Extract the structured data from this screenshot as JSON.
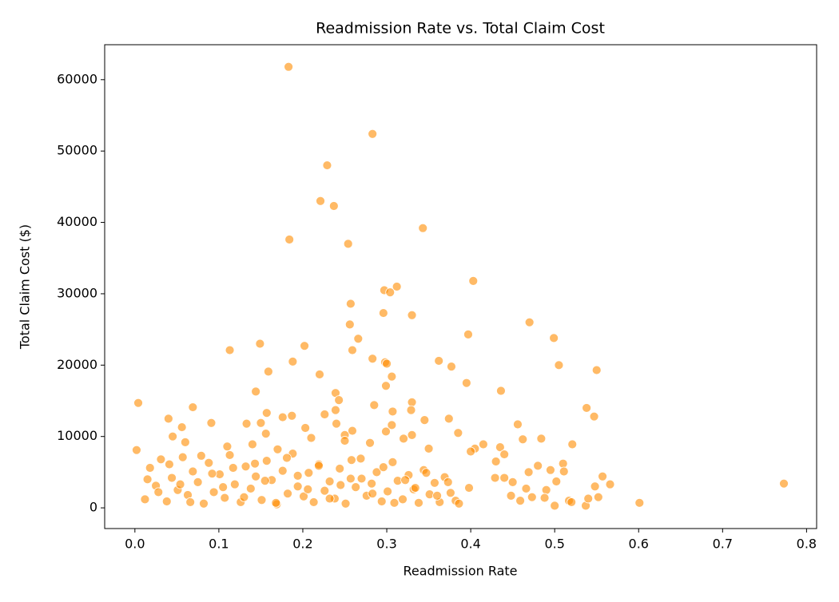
{
  "chart_data": {
    "type": "scatter",
    "title": "Readmission Rate vs. Total Claim Cost",
    "x_label": "Readmission Rate",
    "y_label": "Total Claim Cost ($)",
    "color": "darkorange",
    "alpha": 0.6,
    "grid": false,
    "xlim": [
      -0.036,
      0.812
    ],
    "ylim": [
      -2900,
      64900
    ],
    "xticks": [
      {
        "value": 0,
        "label": "0.0"
      },
      0.1,
      0.2,
      0.3,
      0.4,
      0.5,
      0.6,
      0.7,
      0.8
    ],
    "yticks": [
      0,
      10000,
      20000,
      30000,
      40000,
      50000,
      60000
    ],
    "x": [
      0.183,
      0.283,
      0.229,
      0.221,
      0.237,
      0.184,
      0.254,
      0.343,
      0.403,
      0.297,
      0.312,
      0.304,
      0.257,
      0.296,
      0.33,
      0.47,
      0.256,
      0.397,
      0.499,
      0.266,
      0.149,
      0.202,
      0.113,
      0.259,
      0.283,
      0.362,
      0.188,
      0.298,
      0.3,
      0.505,
      0.377,
      0.55,
      0.159,
      0.22,
      0.306,
      0.395,
      0.299,
      0.436,
      0.144,
      0.239,
      0.243,
      0.004,
      0.33,
      0.285,
      0.069,
      0.538,
      0.157,
      0.239,
      0.307,
      0.329,
      0.226,
      0.547,
      0.187,
      0.176,
      0.04,
      0.345,
      0.374,
      0.133,
      0.15,
      0.091,
      0.24,
      0.306,
      0.456,
      0.056,
      0.203,
      0.385,
      0.045,
      0.156,
      0.259,
      0.299,
      0.33,
      0.25,
      0.462,
      0.484,
      0.521,
      0.415,
      0.435,
      0.405,
      0.4,
      0.002,
      0.773,
      0.601,
      0.566,
      0.557,
      0.548,
      0.537,
      0.517,
      0.54,
      0.51,
      0.495,
      0.49,
      0.469,
      0.466,
      0.48,
      0.45,
      0.5,
      0.52,
      0.552,
      0.43,
      0.44,
      0.429,
      0.44,
      0.448,
      0.459,
      0.473,
      0.488,
      0.502,
      0.511,
      0.012,
      0.018,
      0.025,
      0.031,
      0.038,
      0.044,
      0.051,
      0.057,
      0.063,
      0.069,
      0.075,
      0.082,
      0.088,
      0.094,
      0.101,
      0.107,
      0.113,
      0.119,
      0.126,
      0.132,
      0.138,
      0.144,
      0.151,
      0.157,
      0.163,
      0.169,
      0.176,
      0.182,
      0.188,
      0.194,
      0.201,
      0.207,
      0.213,
      0.219,
      0.226,
      0.232,
      0.238,
      0.244,
      0.251,
      0.257,
      0.263,
      0.269,
      0.276,
      0.282,
      0.288,
      0.294,
      0.301,
      0.307,
      0.313,
      0.319,
      0.326,
      0.332,
      0.338,
      0.344,
      0.351,
      0.357,
      0.363,
      0.369,
      0.376,
      0.382,
      0.015,
      0.028,
      0.041,
      0.054,
      0.066,
      0.079,
      0.092,
      0.105,
      0.117,
      0.13,
      0.143,
      0.155,
      0.168,
      0.181,
      0.194,
      0.206,
      0.219,
      0.232,
      0.245,
      0.258,
      0.27,
      0.283,
      0.296,
      0.309,
      0.322,
      0.334,
      0.347,
      0.36,
      0.373,
      0.386,
      0.398,
      0.06,
      0.11,
      0.14,
      0.17,
      0.21,
      0.25,
      0.28,
      0.32,
      0.35
    ],
    "values": [
      61800,
      52400,
      48000,
      43000,
      42300,
      37600,
      37000,
      39200,
      31800,
      30500,
      31000,
      30200,
      28600,
      27300,
      27000,
      26000,
      25700,
      24300,
      23800,
      23700,
      23000,
      22700,
      22100,
      22100,
      20900,
      20600,
      20500,
      20400,
      20200,
      20000,
      19800,
      19300,
      19100,
      18700,
      18400,
      17500,
      17100,
      16400,
      16300,
      16100,
      15100,
      14700,
      14800,
      14400,
      14100,
      14000,
      13300,
      13700,
      13500,
      13700,
      13100,
      12800,
      12900,
      12700,
      12500,
      12300,
      12500,
      11800,
      11900,
      11900,
      11800,
      11600,
      11700,
      11300,
      11200,
      10500,
      10000,
      10400,
      10800,
      10700,
      10200,
      10200,
      9600,
      9700,
      8900,
      8900,
      8500,
      8300,
      7900,
      8100,
      3400,
      700,
      3300,
      4400,
      3000,
      300,
      1000,
      1300,
      6200,
      5300,
      2500,
      5000,
      2700,
      5900,
      3600,
      300,
      800,
      1500,
      6500,
      7500,
      4200,
      4200,
      1700,
      1000,
      1500,
      1400,
      3700,
      5100,
      1200,
      5600,
      3100,
      6800,
      900,
      4200,
      2500,
      7100,
      1800,
      5100,
      3600,
      600,
      6300,
      2200,
      4700,
      1400,
      7400,
      3300,
      800,
      5800,
      2700,
      4400,
      1100,
      6600,
      3900,
      500,
      5200,
      2000,
      7600,
      3000,
      1600,
      4900,
      800,
      6100,
      2400,
      3700,
      1300,
      5500,
      600,
      4100,
      2900,
      6900,
      1700,
      3400,
      5000,
      900,
      2300,
      6400,
      3800,
      1200,
      4600,
      2600,
      700,
      5300,
      1900,
      3500,
      800,
      4300,
      2100,
      1000,
      4000,
      2200,
      6100,
      3300,
      800,
      7300,
      4800,
      2900,
      5600,
      1500,
      6200,
      3800,
      700,
      7000,
      4500,
      2600,
      5900,
      1300,
      3200,
      6700,
      4100,
      2000,
      5700,
      700,
      3900,
      2800,
      4900,
      1700,
      3600,
      600,
      2800,
      9200,
      8600,
      8900,
      8200,
      9800,
      9400,
      9100,
      9700,
      8300
    ]
  }
}
